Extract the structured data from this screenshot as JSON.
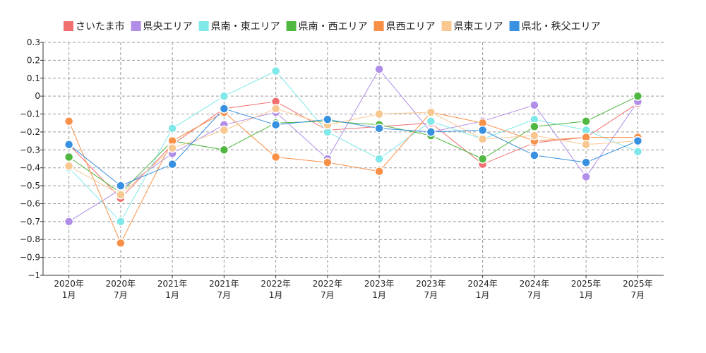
{
  "chart_data": {
    "type": "line",
    "title": "",
    "xlabel": "",
    "ylabel": "",
    "ylim": [
      -1,
      0.3
    ],
    "yticks": [
      0.3,
      0.2,
      0.1,
      0,
      -0.1,
      -0.2,
      -0.3,
      -0.4,
      -0.5,
      -0.6,
      -0.7,
      -0.8,
      -0.9,
      -1
    ],
    "ytick_labels": [
      "0.3",
      "0.2",
      "0.1",
      "0",
      "−0.1",
      "−0.2",
      "−0.3",
      "−0.4",
      "−0.5",
      "−0.6",
      "−0.7",
      "−0.8",
      "−0.9",
      "−1"
    ],
    "grid": true,
    "legend_position": "top",
    "categories": [
      {
        "year": "2020年",
        "month": "1月"
      },
      {
        "year": "2020年",
        "month": "7月"
      },
      {
        "year": "2021年",
        "month": "1月"
      },
      {
        "year": "2021年",
        "month": "7月"
      },
      {
        "year": "2022年",
        "month": "1月"
      },
      {
        "year": "2022年",
        "month": "7月"
      },
      {
        "year": "2023年",
        "month": "1月"
      },
      {
        "year": "2023年",
        "month": "7月"
      },
      {
        "year": "2024年",
        "month": "1月"
      },
      {
        "year": "2024年",
        "month": "7月"
      },
      {
        "year": "2025年",
        "month": "1月"
      },
      {
        "year": "2025年",
        "month": "7月"
      }
    ],
    "series": [
      {
        "name": "さいたま市",
        "color": "#f07070",
        "values": [
          -0.27,
          -0.57,
          -0.27,
          -0.07,
          -0.03,
          -0.19,
          -0.17,
          -0.15,
          -0.38,
          -0.26,
          -0.23,
          -0.04
        ]
      },
      {
        "name": "県央エリア",
        "color": "#b08ee8",
        "values": [
          -0.7,
          -0.52,
          -0.32,
          -0.16,
          -0.09,
          -0.35,
          0.15,
          -0.2,
          -0.14,
          -0.05,
          -0.45,
          -0.03
        ]
      },
      {
        "name": "県南・東エリア",
        "color": "#80e8e8",
        "values": [
          -0.4,
          -0.7,
          -0.18,
          0.0,
          0.14,
          -0.2,
          -0.35,
          -0.14,
          -0.24,
          -0.13,
          -0.19,
          -0.31
        ]
      },
      {
        "name": "県南・西エリア",
        "color": "#50b840",
        "values": [
          -0.34,
          -0.54,
          -0.25,
          -0.3,
          -0.15,
          -0.14,
          -0.16,
          -0.22,
          -0.35,
          -0.17,
          -0.14,
          0.0
        ]
      },
      {
        "name": "県西エリア",
        "color": "#f89048",
        "values": [
          -0.14,
          -0.82,
          -0.25,
          -0.09,
          -0.34,
          -0.37,
          -0.42,
          -0.09,
          -0.15,
          -0.25,
          -0.23,
          -0.23
        ]
      },
      {
        "name": "県東エリア",
        "color": "#f8c890",
        "values": [
          -0.39,
          -0.55,
          -0.29,
          -0.19,
          -0.07,
          -0.16,
          -0.1,
          -0.09,
          -0.24,
          -0.22,
          -0.27,
          -0.25
        ]
      },
      {
        "name": "県北・秩父エリア",
        "color": "#3890e0",
        "values": [
          -0.27,
          -0.5,
          -0.38,
          -0.07,
          -0.16,
          -0.13,
          -0.18,
          -0.2,
          -0.19,
          -0.33,
          -0.37,
          -0.25
        ]
      }
    ]
  }
}
